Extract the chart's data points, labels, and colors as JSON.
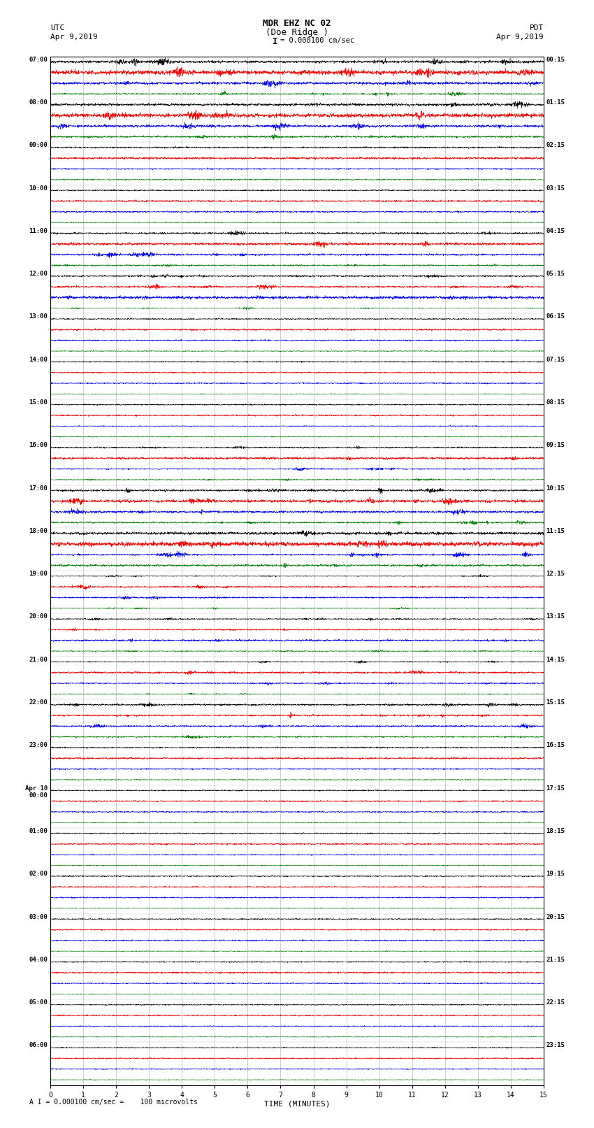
{
  "title_line1": "MDR EHZ NC 02",
  "title_line2": "(Doe Ridge )",
  "scale_label": "= 0.000100 cm/sec",
  "footer_label": "A I = 0.000100 cm/sec =    100 microvolts",
  "utc_label": "UTC",
  "utc_date": "Apr 9,2019",
  "pdt_label": "PDT",
  "pdt_date": "Apr 9,2019",
  "xlabel": "TIME (MINUTES)",
  "left_times": [
    "07:00",
    "08:00",
    "09:00",
    "10:00",
    "11:00",
    "12:00",
    "13:00",
    "14:00",
    "15:00",
    "16:00",
    "17:00",
    "18:00",
    "19:00",
    "20:00",
    "21:00",
    "22:00",
    "23:00",
    "Apr 10\n00:00",
    "01:00",
    "02:00",
    "03:00",
    "04:00",
    "05:00",
    "06:00"
  ],
  "right_times": [
    "00:15",
    "01:15",
    "02:15",
    "03:15",
    "04:15",
    "05:15",
    "06:15",
    "07:15",
    "08:15",
    "09:15",
    "10:15",
    "11:15",
    "12:15",
    "13:15",
    "14:15",
    "15:15",
    "16:15",
    "17:15",
    "18:15",
    "19:15",
    "20:15",
    "21:15",
    "22:15",
    "23:15"
  ],
  "n_rows": 24,
  "traces_per_row": 4,
  "trace_colors": [
    "black",
    "red",
    "blue",
    "green"
  ],
  "x_min": 0,
  "x_max": 15,
  "x_ticks": [
    0,
    1,
    2,
    3,
    4,
    5,
    6,
    7,
    8,
    9,
    10,
    11,
    12,
    13,
    14,
    15
  ],
  "bg_color": "white",
  "plot_bg": "white",
  "seed": 42,
  "row_amplitudes": [
    0.9,
    0.85,
    0.25,
    0.22,
    0.55,
    0.45,
    0.2,
    0.18,
    0.18,
    0.35,
    0.65,
    0.7,
    0.4,
    0.35,
    0.35,
    0.55,
    0.2,
    0.18,
    0.18,
    0.18,
    0.18,
    0.18,
    0.15,
    0.15
  ],
  "trace_amp_mods": [
    1.0,
    1.3,
    1.1,
    0.7
  ]
}
